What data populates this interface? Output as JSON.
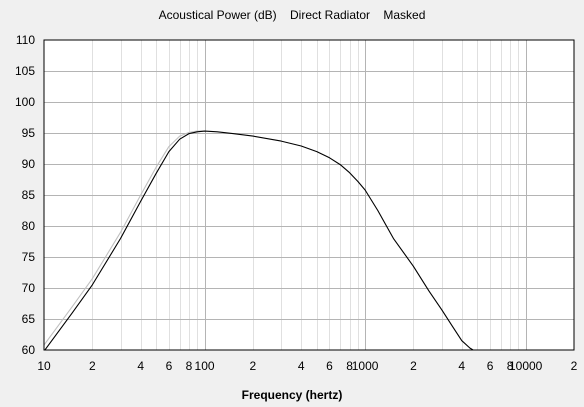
{
  "chart_data": {
    "type": "line",
    "title": "Acoustical Power (dB)    Direct Radiator    Masked",
    "xlabel": "Frequency (hertz)",
    "ylabel": "",
    "x_scale": "log",
    "xlim": [
      10,
      20000
    ],
    "ylim": [
      60,
      110
    ],
    "grid": true,
    "y_ticks": [
      60,
      65,
      70,
      75,
      80,
      85,
      90,
      95,
      100,
      105,
      110
    ],
    "x_ticks": [
      {
        "value": 10,
        "label": "10"
      },
      {
        "value": 20,
        "label": "2"
      },
      {
        "value": 40,
        "label": "4"
      },
      {
        "value": 60,
        "label": "6"
      },
      {
        "value": 80,
        "label": "8"
      },
      {
        "value": 100,
        "label": "100"
      },
      {
        "value": 200,
        "label": "2"
      },
      {
        "value": 400,
        "label": "4"
      },
      {
        "value": 600,
        "label": "6"
      },
      {
        "value": 800,
        "label": "8"
      },
      {
        "value": 1000,
        "label": "1000"
      },
      {
        "value": 2000,
        "label": "2"
      },
      {
        "value": 4000,
        "label": "4"
      },
      {
        "value": 6000,
        "label": "6"
      },
      {
        "value": 8000,
        "label": "8"
      },
      {
        "value": 10000,
        "label": "10000"
      },
      {
        "value": 20000,
        "label": "2"
      }
    ],
    "series": [
      {
        "color": "#000000",
        "x": [
          10,
          15,
          20,
          30,
          40,
          50,
          60,
          70,
          80,
          90,
          100,
          120,
          150,
          200,
          300,
          400,
          500,
          600,
          700,
          800,
          900,
          1000,
          1200,
          1500,
          2000,
          2500,
          3000,
          3500,
          4000,
          4500,
          5000
        ],
        "y": [
          59.8,
          66,
          70.5,
          78,
          84,
          88.5,
          92,
          94,
          94.9,
          95.2,
          95.3,
          95.2,
          94.9,
          94.5,
          93.7,
          92.9,
          92,
          91,
          89.9,
          88.6,
          87.2,
          85.8,
          82.5,
          78,
          73.5,
          69.5,
          66.5,
          63.8,
          61.5,
          60.3,
          59.6
        ]
      },
      {
        "color": "#c0c0c0",
        "x": [
          10,
          15,
          20,
          30,
          40,
          50,
          60,
          70,
          80,
          90,
          100
        ],
        "y": [
          60.8,
          67,
          71.5,
          79,
          85,
          89.5,
          92.8,
          94.5,
          95.1,
          95.3,
          95.3
        ]
      }
    ]
  }
}
